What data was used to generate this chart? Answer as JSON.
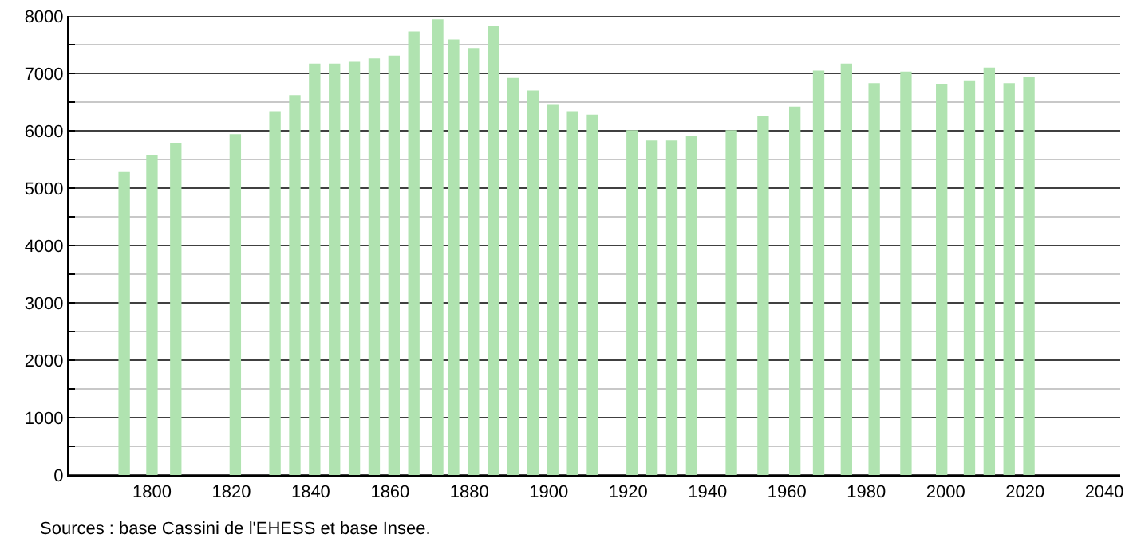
{
  "chart_data": {
    "type": "bar",
    "x": [
      1793,
      1800,
      1806,
      1821,
      1831,
      1836,
      1841,
      1846,
      1851,
      1856,
      1861,
      1866,
      1872,
      1876,
      1881,
      1886,
      1891,
      1896,
      1901,
      1906,
      1911,
      1921,
      1926,
      1931,
      1936,
      1946,
      1954,
      1962,
      1968,
      1975,
      1982,
      1990,
      1999,
      2006,
      2011,
      2016,
      2021
    ],
    "values": [
      5280,
      5580,
      5780,
      5940,
      6340,
      6620,
      7170,
      7170,
      7200,
      7260,
      7310,
      7730,
      7940,
      7590,
      7440,
      7820,
      6920,
      6700,
      6450,
      6340,
      6280,
      6010,
      5830,
      5830,
      5910,
      6010,
      6260,
      6420,
      7050,
      7170,
      6830,
      7030,
      6810,
      6880,
      7100,
      6830,
      6940
    ],
    "color": "#b0e3b0",
    "xlim": [
      1779,
      2044
    ],
    "xticks": [
      1800,
      1820,
      1840,
      1860,
      1880,
      1900,
      1920,
      1940,
      1960,
      1980,
      2000,
      2020,
      2040
    ],
    "ylim": [
      0,
      8000
    ],
    "yticks": [
      0,
      {
        "value": 500,
        "label": null
      },
      1000,
      {
        "value": 1500,
        "label": null
      },
      2000,
      {
        "value": 2500,
        "label": null
      },
      3000,
      {
        "value": 3500,
        "label": null
      },
      4000,
      {
        "value": 4500,
        "label": null
      },
      5000,
      {
        "value": 5500,
        "label": null
      },
      6000,
      {
        "value": 6500,
        "label": null
      },
      7000,
      {
        "value": 7500,
        "label": null
      },
      8000
    ],
    "grid": "y",
    "annotations": [
      "Sources : base Cassini de l'EHESS et base Insee."
    ]
  }
}
